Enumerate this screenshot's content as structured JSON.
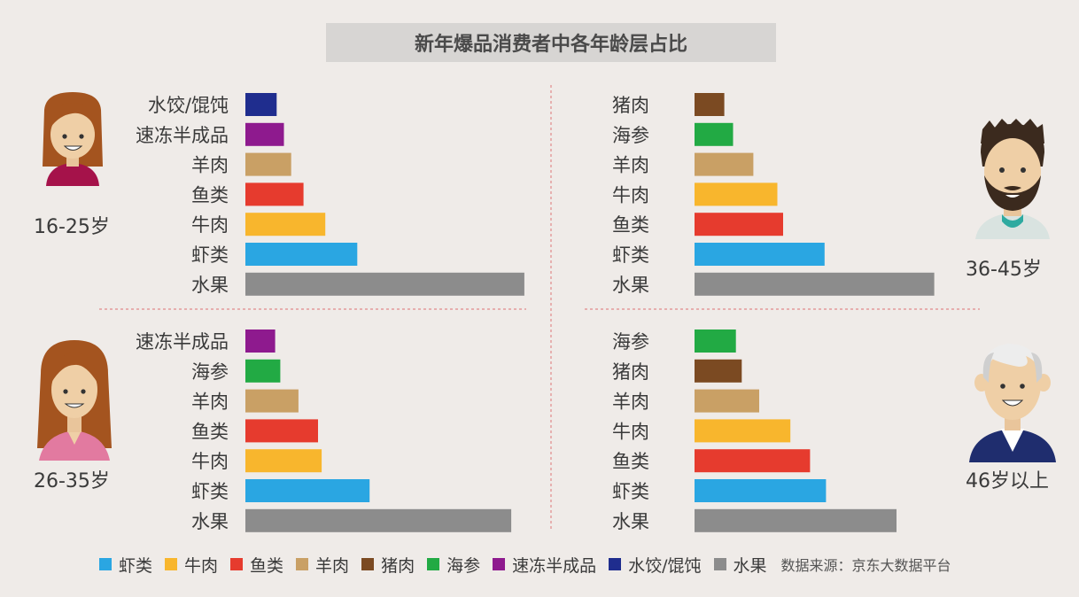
{
  "title": "新年爆品消费者中各年龄层占比",
  "colors": {
    "虾类": "#2aa6e2",
    "牛肉": "#f8b62d",
    "鱼类": "#e63b2e",
    "羊肉": "#c9a065",
    "猪肉": "#7b4a22",
    "海参": "#22aa44",
    "速冻半成品": "#8e1a8e",
    "水饺/馄饨": "#1f2d8e",
    "水果": "#8c8c8c"
  },
  "legend": {
    "items": [
      "虾类",
      "牛肉",
      "鱼类",
      "羊肉",
      "猪肉",
      "海参",
      "速冻半成品",
      "水饺/馄饨",
      "水果"
    ],
    "source": "数据来源：京东大数据平台"
  },
  "chart_data": [
    {
      "type": "bar",
      "age_group": "16-25岁",
      "categories": [
        "水饺/馄饨",
        "速冻半成品",
        "羊肉",
        "鱼类",
        "牛肉",
        "虾类",
        "水果"
      ],
      "values": [
        4.3,
        5.3,
        6.3,
        8.0,
        11.0,
        15.4,
        38.4
      ]
    },
    {
      "type": "bar",
      "age_group": "36-45岁",
      "categories": [
        "猪肉",
        "海参",
        "羊肉",
        "牛肉",
        "鱼类",
        "虾类",
        "水果"
      ],
      "values": [
        4.1,
        5.3,
        8.1,
        11.4,
        12.2,
        17.9,
        33.0
      ]
    },
    {
      "type": "bar",
      "age_group": "26-35岁",
      "categories": [
        "速冻半成品",
        "海参",
        "羊肉",
        "鱼类",
        "牛肉",
        "虾类",
        "水果"
      ],
      "values": [
        4.1,
        4.8,
        7.3,
        10.0,
        10.5,
        17.1,
        36.6
      ]
    },
    {
      "type": "bar",
      "age_group": "46岁以上",
      "categories": [
        "海参",
        "猪肉",
        "羊肉",
        "牛肉",
        "鱼类",
        "虾类",
        "水果"
      ],
      "values": [
        5.7,
        6.5,
        8.9,
        13.2,
        15.9,
        18.1,
        27.8
      ]
    }
  ]
}
